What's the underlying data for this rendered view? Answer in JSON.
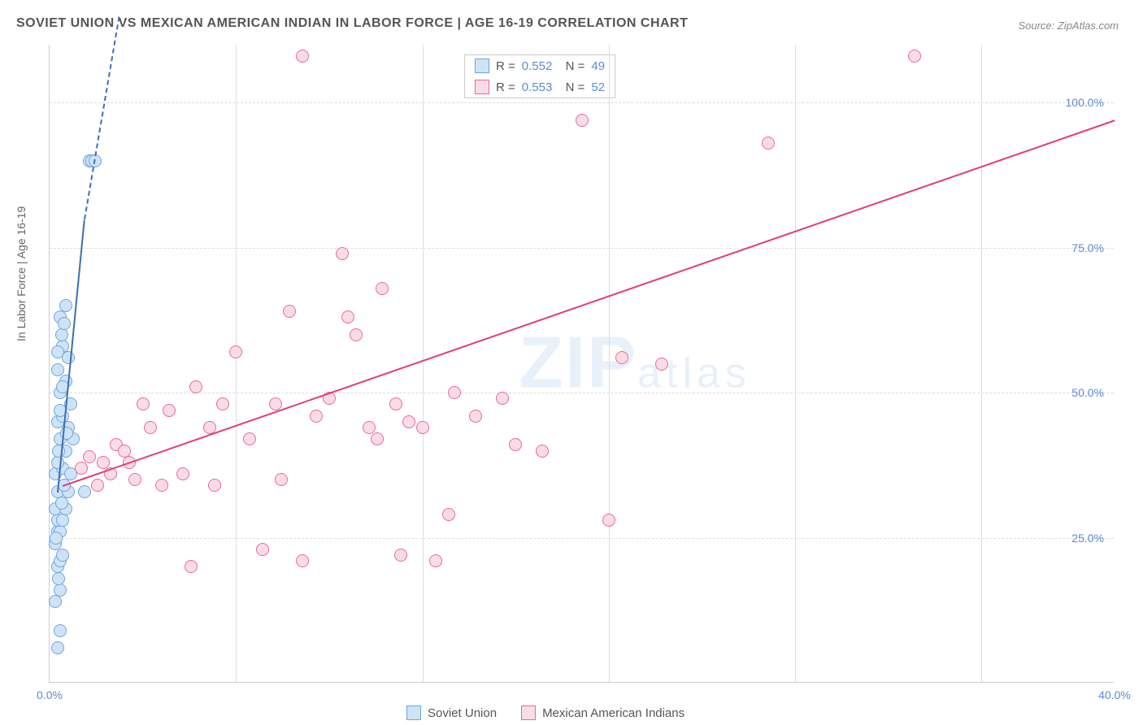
{
  "title": "SOVIET UNION VS MEXICAN AMERICAN INDIAN IN LABOR FORCE | AGE 16-19 CORRELATION CHART",
  "source": "Source: ZipAtlas.com",
  "ylabel": "In Labor Force | Age 16-19",
  "watermark_main": "ZIP",
  "watermark_sub": "atlas",
  "chart": {
    "type": "scatter",
    "background_color": "#ffffff",
    "grid_color": "#dddddd",
    "xlim": [
      0,
      40
    ],
    "ylim": [
      0,
      110
    ],
    "yticks": [
      25,
      50,
      75,
      100
    ],
    "ytick_labels": [
      "25.0%",
      "50.0%",
      "75.0%",
      "100.0%"
    ],
    "xticks": [
      0,
      40
    ],
    "xtick_labels": [
      "0.0%",
      "40.0%"
    ],
    "grid_v_positions": [
      7,
      14,
      21,
      28,
      35
    ],
    "point_radius": 8,
    "series": [
      {
        "name": "Soviet Union",
        "fill": "#cfe3f7",
        "stroke": "#6fa4dd",
        "line_color": "#3b6fb5",
        "R": "0.552",
        "N": "49",
        "trend": {
          "x0": 0.3,
          "y0": 33,
          "x1": 1.3,
          "y1": 80,
          "dash_x1": 2.6,
          "dash_y1": 115
        },
        "points": [
          [
            0.3,
            6
          ],
          [
            0.4,
            9
          ],
          [
            0.3,
            20
          ],
          [
            0.4,
            21
          ],
          [
            0.2,
            24
          ],
          [
            0.3,
            26
          ],
          [
            0.4,
            26
          ],
          [
            0.3,
            28
          ],
          [
            0.5,
            28
          ],
          [
            0.2,
            30
          ],
          [
            0.6,
            30
          ],
          [
            0.3,
            33
          ],
          [
            0.7,
            33
          ],
          [
            0.2,
            36
          ],
          [
            0.5,
            37
          ],
          [
            0.8,
            36
          ],
          [
            0.3,
            38
          ],
          [
            0.6,
            40
          ],
          [
            0.9,
            42
          ],
          [
            0.4,
            42
          ],
          [
            0.7,
            44
          ],
          [
            0.3,
            45
          ],
          [
            0.5,
            46
          ],
          [
            0.8,
            48
          ],
          [
            0.4,
            50
          ],
          [
            0.6,
            52
          ],
          [
            0.3,
            54
          ],
          [
            0.7,
            56
          ],
          [
            0.5,
            58
          ],
          [
            0.4,
            63
          ],
          [
            0.6,
            65
          ],
          [
            1.5,
            90
          ],
          [
            1.6,
            90
          ],
          [
            1.7,
            90
          ],
          [
            0.2,
            14
          ],
          [
            0.4,
            16
          ],
          [
            0.35,
            18
          ],
          [
            0.5,
            22
          ],
          [
            0.25,
            25
          ],
          [
            0.45,
            31
          ],
          [
            0.55,
            34
          ],
          [
            0.35,
            40
          ],
          [
            0.65,
            43
          ],
          [
            0.4,
            47
          ],
          [
            0.5,
            51
          ],
          [
            0.3,
            57
          ],
          [
            0.45,
            60
          ],
          [
            0.55,
            62
          ],
          [
            1.3,
            33
          ]
        ]
      },
      {
        "name": "Mexican American Indians",
        "fill": "#fadce4",
        "stroke": "#e86b94",
        "line_color": "#e23d77",
        "R": "0.553",
        "N": "52",
        "trend": {
          "x0": 0.5,
          "y0": 34,
          "x1": 40,
          "y1": 97
        },
        "points": [
          [
            1.2,
            37
          ],
          [
            1.5,
            39
          ],
          [
            1.8,
            34
          ],
          [
            2.0,
            38
          ],
          [
            2.3,
            36
          ],
          [
            2.5,
            41
          ],
          [
            3.0,
            38
          ],
          [
            3.2,
            35
          ],
          [
            3.5,
            48
          ],
          [
            3.8,
            44
          ],
          [
            4.2,
            34
          ],
          [
            4.5,
            47
          ],
          [
            5.0,
            36
          ],
          [
            5.3,
            20
          ],
          [
            5.5,
            51
          ],
          [
            6.0,
            44
          ],
          [
            6.2,
            34
          ],
          [
            6.5,
            48
          ],
          [
            7.0,
            57
          ],
          [
            7.5,
            42
          ],
          [
            8.0,
            23
          ],
          [
            8.5,
            48
          ],
          [
            8.7,
            35
          ],
          [
            9.0,
            64
          ],
          [
            9.5,
            21
          ],
          [
            9.5,
            108
          ],
          [
            10.0,
            46
          ],
          [
            10.5,
            49
          ],
          [
            11.0,
            74
          ],
          [
            11.2,
            63
          ],
          [
            11.5,
            60
          ],
          [
            12.0,
            44
          ],
          [
            12.3,
            42
          ],
          [
            12.5,
            68
          ],
          [
            13.0,
            48
          ],
          [
            13.2,
            22
          ],
          [
            13.5,
            45
          ],
          [
            14.0,
            44
          ],
          [
            14.5,
            21
          ],
          [
            15.0,
            29
          ],
          [
            15.2,
            50
          ],
          [
            16.0,
            46
          ],
          [
            17.0,
            49
          ],
          [
            17.5,
            41
          ],
          [
            18.5,
            40
          ],
          [
            20.0,
            97
          ],
          [
            21.0,
            28
          ],
          [
            21.5,
            56
          ],
          [
            23.0,
            55
          ],
          [
            27.0,
            93
          ],
          [
            32.5,
            108
          ],
          [
            2.8,
            40
          ]
        ]
      }
    ],
    "legend_bottom": [
      {
        "label": "Soviet Union",
        "fill": "#cfe3f7",
        "stroke": "#6fa4dd"
      },
      {
        "label": "Mexican American Indians",
        "fill": "#fadce4",
        "stroke": "#e86b94"
      }
    ]
  }
}
